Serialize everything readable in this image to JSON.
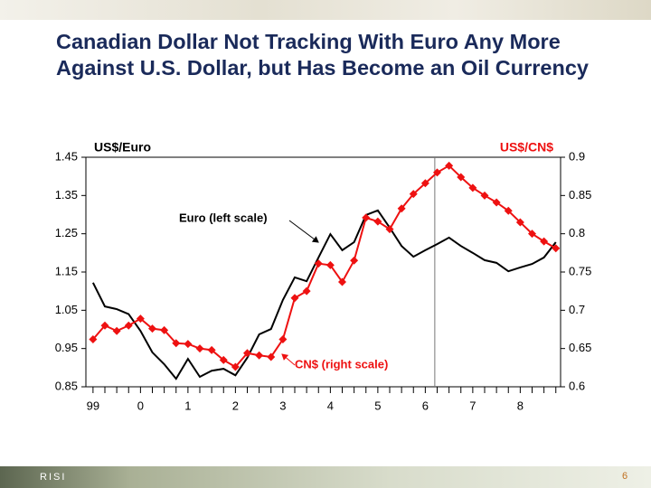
{
  "title": "Canadian Dollar Not Tracking With Euro Any More Against U.S. Dollar, but Has Become an Oil Currency",
  "footer": {
    "brand": "RISI",
    "page": "6"
  },
  "chart_data": {
    "type": "line",
    "y_label": "US$/Euro",
    "y2_label": "US$/CN$",
    "x": [
      1999,
      1999.25,
      1999.5,
      1999.75,
      2000,
      2000.25,
      2000.5,
      2000.75,
      2001,
      2001.25,
      2001.5,
      2001.75,
      2002,
      2002.25,
      2002.5,
      2002.75,
      2003,
      2003.25,
      2003.5,
      2003.75,
      2004,
      2004.25,
      2004.5,
      2004.75,
      2005,
      2005.25,
      2005.5,
      2005.75,
      2006,
      2006.25,
      2006.5,
      2006.75,
      2007,
      2007.25,
      2007.5,
      2007.75,
      2008,
      2008.25,
      2008.5,
      2008.75
    ],
    "series": [
      {
        "name": "Euro (left scale)",
        "color": "#000000",
        "marker": false,
        "values": [
          1.122,
          1.06,
          1.053,
          1.04,
          0.996,
          0.94,
          0.909,
          0.871,
          0.923,
          0.876,
          0.892,
          0.897,
          0.88,
          0.926,
          0.987,
          1.001,
          1.077,
          1.136,
          1.126,
          1.188,
          1.249,
          1.207,
          1.228,
          1.299,
          1.311,
          1.266,
          1.218,
          1.19,
          1.207,
          1.223,
          1.24,
          1.218,
          1.2,
          1.181,
          1.174,
          1.152,
          1.162,
          1.171,
          1.188,
          1.228
        ]
      },
      {
        "name": "CN$ (right scale)",
        "color": "#ee1111",
        "marker": true,
        "axis": "y2",
        "values": [
          0.662,
          0.68,
          0.673,
          0.68,
          0.689,
          0.676,
          0.674,
          0.657,
          0.656,
          0.65,
          0.648,
          0.635,
          0.626,
          0.644,
          0.641,
          0.639,
          0.662,
          0.716,
          0.725,
          0.761,
          0.759,
          0.737,
          0.765,
          0.821,
          0.816,
          0.806,
          0.833,
          0.852,
          0.866,
          0.88,
          0.889,
          0.874,
          0.86,
          0.85,
          0.841,
          0.83,
          0.815,
          0.8,
          0.79,
          0.781
        ]
      }
    ],
    "xlim": [
      1998.85,
      2008.85
    ],
    "xticks": [
      {
        "value": 1999,
        "label": "99"
      },
      {
        "value": 2000,
        "label": "0"
      },
      {
        "value": 2001,
        "label": "1"
      },
      {
        "value": 2002,
        "label": "2"
      },
      {
        "value": 2003,
        "label": "3"
      },
      {
        "value": 2004,
        "label": "4"
      },
      {
        "value": 2005,
        "label": "5"
      },
      {
        "value": 2006,
        "label": "6"
      },
      {
        "value": 2007,
        "label": "7"
      },
      {
        "value": 2008,
        "label": "8"
      }
    ],
    "ylim": [
      0.85,
      1.45
    ],
    "yticks": [
      0.85,
      0.95,
      1.05,
      1.15,
      1.25,
      1.35,
      1.45
    ],
    "y2lim": [
      0.6,
      0.9
    ],
    "y2ticks": [
      {
        "value": 0.6,
        "label": "0.6"
      },
      0.65,
      {
        "value": 0.7,
        "label": "0.7"
      },
      0.75,
      {
        "value": 0.8,
        "label": "0.8"
      },
      0.85,
      {
        "value": 0.9,
        "label": "0.9"
      }
    ],
    "vline_x": 2006.2,
    "grid": false
  }
}
